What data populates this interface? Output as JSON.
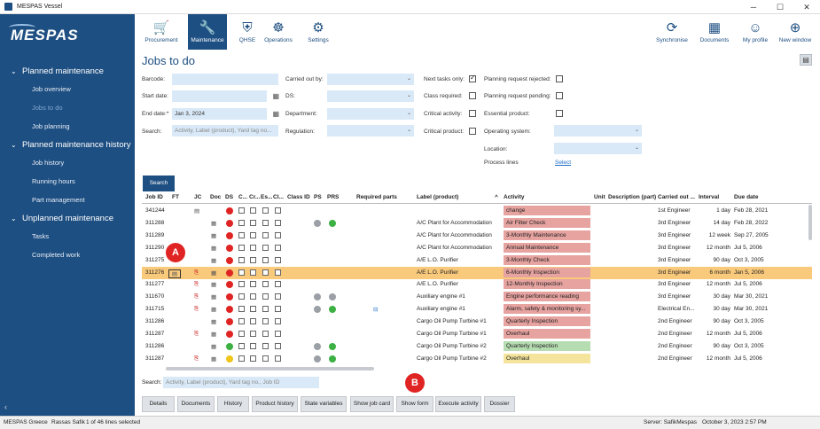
{
  "app": {
    "title": "MESPAS Vessel",
    "logo": "MESPAS"
  },
  "nav": {
    "groups": [
      {
        "label": "Planned maintenance",
        "items": [
          "Job overview",
          "Jobs to do",
          "Job planning"
        ]
      },
      {
        "label": "Planned maintenance history",
        "items": [
          "Job history",
          "Running hours",
          "Part management"
        ]
      },
      {
        "label": "Unplanned maintenance",
        "items": [
          "Tasks",
          "Completed work"
        ]
      }
    ],
    "active_item": "Jobs to do"
  },
  "toolbar": {
    "left": [
      {
        "label": "Procurement",
        "icon": "cart-icon"
      },
      {
        "label": "Maintenance",
        "icon": "wrench-icon",
        "active": true
      },
      {
        "label": "QHSE",
        "icon": "qhse-icon"
      },
      {
        "label": "Operations",
        "icon": "operations-icon"
      },
      {
        "label": "Settings",
        "icon": "gear-icon"
      }
    ],
    "right": [
      {
        "label": "Synchronise",
        "icon": "sync-icon"
      },
      {
        "label": "Documents",
        "icon": "documents-icon"
      },
      {
        "label": "My profile",
        "icon": "profile-icon"
      },
      {
        "label": "New window",
        "icon": "plus-icon"
      }
    ]
  },
  "page": {
    "title": "Jobs to do"
  },
  "filters": {
    "barcode": "Barcode:",
    "start_date": "Start date:",
    "end_date": "End date:*",
    "end_date_value": "Jan 3, 2024",
    "search": "Search:",
    "search_placeholder": "Activity, Label (product), Yard tag no...",
    "carried_out_by": "Carried out by:",
    "ds": "DS:",
    "department": "Department:",
    "regulation": "Regulation:",
    "next_tasks_only": "Next tasks only:",
    "class_required": "Class required:",
    "critical_activity": "Critical activity:",
    "critical_product": "Critical product:",
    "planning_rejected": "Planning request rejected:",
    "planning_pending": "Planning request pending:",
    "essential_product": "Essential product:",
    "operating_system": "Operating system:",
    "location": "Location:",
    "process_lines": "Process lines",
    "select": "Select",
    "search_button": "Search"
  },
  "grid": {
    "columns": [
      "Job ID",
      "FT",
      "JC",
      "Doc",
      "DS",
      "C...",
      "Cr...",
      "Es...",
      "Cl...",
      "Class ID",
      "PS",
      "PRS",
      "Required parts",
      "Label (product)",
      "Activity",
      "Unit",
      "Description (part)",
      "Carried out ...",
      "Interval",
      "Due date"
    ],
    "rows": [
      {
        "id": "341244",
        "label": "",
        "activity": "change",
        "act_color": "red",
        "carried": "1st Engineer",
        "interval": "1 day",
        "due": "Feb 28, 2021",
        "ds": "red",
        "ps": "",
        "prs": "",
        "jc": "",
        "ft": ""
      },
      {
        "id": "311288",
        "label": "A/C Plant for Accommodation",
        "activity": "Air Filter Check",
        "act_color": "red",
        "carried": "3rd Engineer",
        "interval": "14 day",
        "due": "Feb 28, 2022",
        "ds": "red",
        "ps": "gray",
        "prs": "green",
        "jc": "",
        "ft": ""
      },
      {
        "id": "311289",
        "label": "A/C Plant for Accommodation",
        "activity": "3-Monthly Maintenance",
        "act_color": "red",
        "carried": "3rd Engineer",
        "interval": "12 week",
        "due": "Sep 27, 2005",
        "ds": "red",
        "ps": "",
        "prs": "",
        "jc": "",
        "ft": ""
      },
      {
        "id": "311290",
        "label": "A/C Plant for Accommodation",
        "activity": "Annual Maintenance",
        "act_color": "red",
        "carried": "3rd Engineer",
        "interval": "12 month",
        "due": "Jul 5, 2006",
        "ds": "red",
        "ps": "",
        "prs": "",
        "jc": "",
        "ft": ""
      },
      {
        "id": "311275",
        "label": "A/E L.O. Purifier",
        "activity": "3-Monthly Check",
        "act_color": "red",
        "carried": "3rd Engineer",
        "interval": "90 day",
        "due": "Oct 3, 2005",
        "ds": "red",
        "ps": "",
        "prs": "",
        "jc": "",
        "ft": ""
      },
      {
        "id": "311276",
        "label": "A/E L.O. Purifier",
        "activity": "6-Monthly Inspection",
        "act_color": "red",
        "carried": "3rd Engineer",
        "interval": "6 month",
        "due": "Jan 5, 2006",
        "ds": "red",
        "ps": "",
        "prs": "",
        "jc": "jc",
        "ft": "ft"
      },
      {
        "id": "311277",
        "label": "A/E L.O. Purifier",
        "activity": "12-Monthly Inspection",
        "act_color": "red",
        "carried": "3rd Engineer",
        "interval": "12 month",
        "due": "Jul 5, 2006",
        "ds": "red",
        "ps": "",
        "prs": "",
        "jc": "jc",
        "ft": ""
      },
      {
        "id": "311670",
        "label": "Auxiliary engine #1",
        "activity": "Engine performance reading",
        "act_color": "red",
        "carried": "3rd Engineer",
        "interval": "30 day",
        "due": "Mar 30, 2021",
        "ds": "red",
        "ps": "gray",
        "prs": "gray",
        "jc": "jc",
        "ft": ""
      },
      {
        "id": "311715",
        "label": "Auxiliary engine #1",
        "activity": "Alarm, safety & monitoring sy...",
        "act_color": "red",
        "carried": "Electrical En...",
        "interval": "30 day",
        "due": "Mar 30, 2021",
        "ds": "red",
        "ps": "gray",
        "prs": "green",
        "jc": "jc",
        "ft": ""
      },
      {
        "id": "311286",
        "label": "Cargo Oil Pump Turbine #1",
        "activity": "Quarterly Inspection",
        "act_color": "red",
        "carried": "2nd Engineer",
        "interval": "90 day",
        "due": "Oct 3, 2005",
        "ds": "red",
        "ps": "",
        "prs": "",
        "jc": "",
        "ft": ""
      },
      {
        "id": "311287",
        "label": "Cargo Oil Pump Turbine #1",
        "activity": "Overhaul",
        "act_color": "red",
        "carried": "2nd Engineer",
        "interval": "12 month",
        "due": "Jul 5, 2006",
        "ds": "red",
        "ps": "",
        "prs": "",
        "jc": "jc",
        "ft": ""
      },
      {
        "id": "311286",
        "label": "Cargo Oil Pump Turbine #2",
        "activity": "Quarterly Inspection",
        "act_color": "green",
        "carried": "2nd Engineer",
        "interval": "90 day",
        "due": "Oct 3, 2005",
        "ds": "green",
        "ps": "gray",
        "prs": "green",
        "jc": "",
        "ft": ""
      },
      {
        "id": "311287",
        "label": "Cargo Oil Pump Turbine #2",
        "activity": "Overhaul",
        "act_color": "yellow",
        "carried": "2nd Engineer",
        "interval": "12 month",
        "due": "Jul 5, 2006",
        "ds": "yellow",
        "ps": "gray",
        "prs": "green",
        "jc": "jc",
        "ft": ""
      }
    ]
  },
  "bottom": {
    "search_label": "Search:",
    "search_placeholder": "Activity, Label (product), Yard tag no., Job ID",
    "buttons": [
      "Details",
      "Documents",
      "History",
      "Product history",
      "State variables",
      "Show job card",
      "Show form",
      "Execute activity",
      "Dossier"
    ]
  },
  "markers": {
    "a": "A",
    "b": "B"
  },
  "status": {
    "company": "MESPAS Greece",
    "user": "Rassas Safik",
    "lines": "1 of 46 lines selected",
    "server": "Server: SafikMespas",
    "datetime": "October 3, 2023 2:57 PM"
  }
}
